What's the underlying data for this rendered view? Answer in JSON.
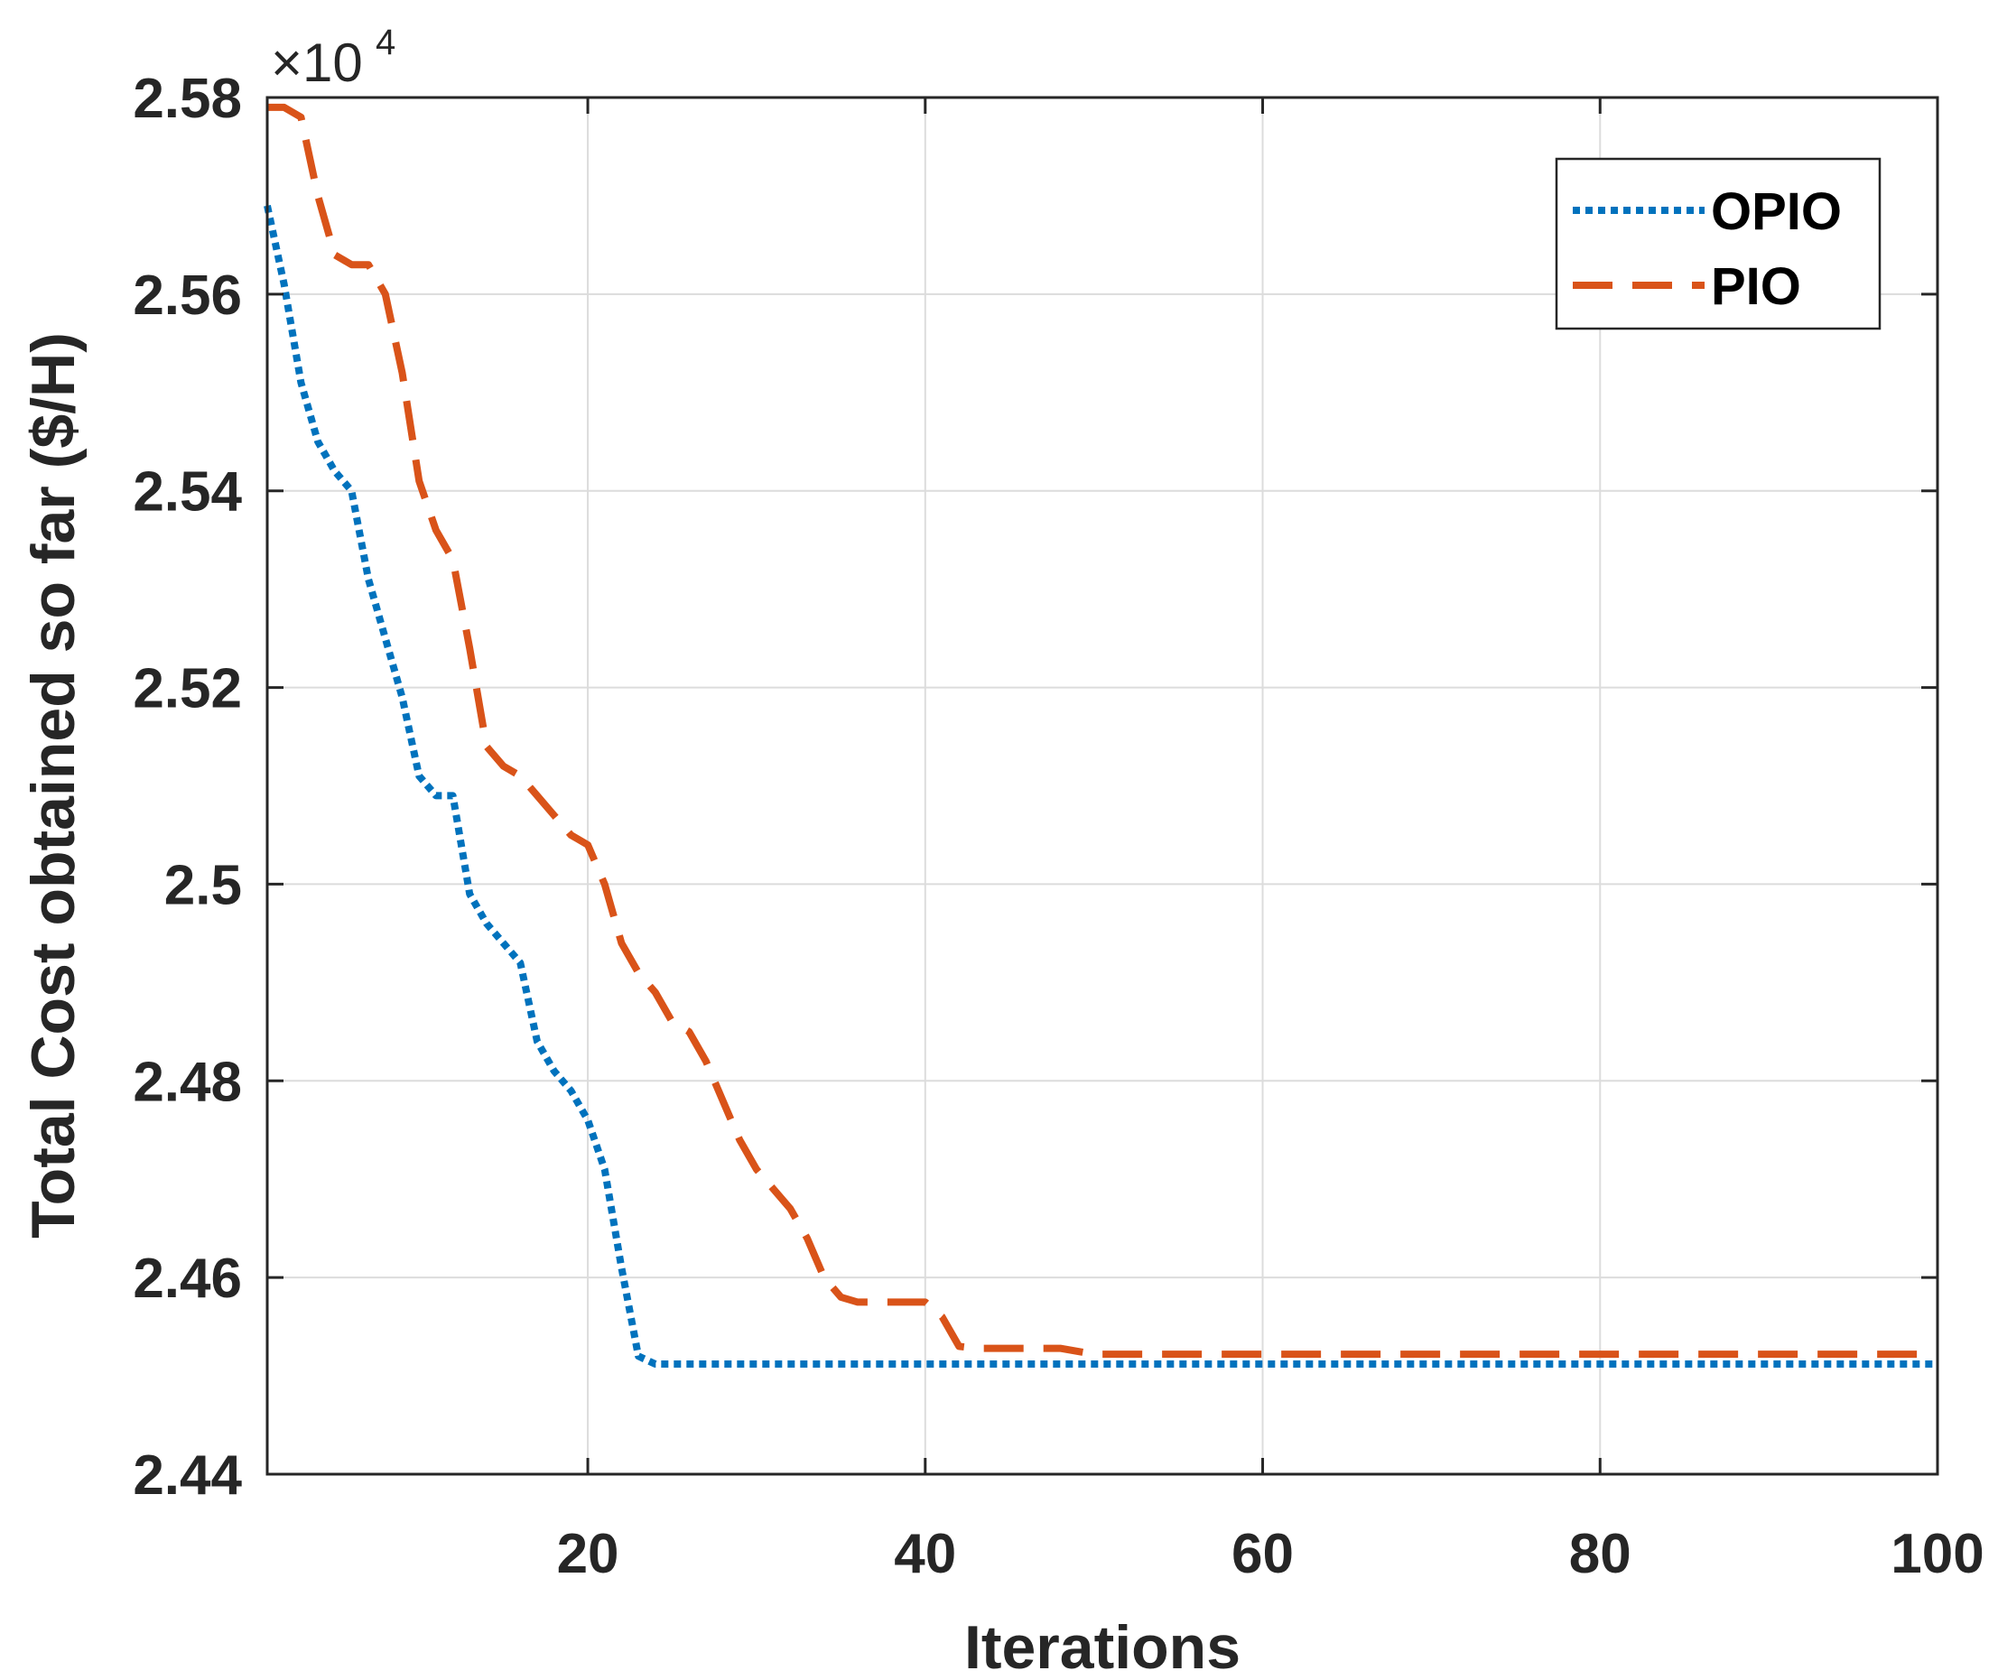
{
  "chart_data": {
    "type": "line",
    "xlabel": "Iterations",
    "ylabel": "Total Cost obtained so far ($/H)",
    "y_multiplier_base": "×10",
    "y_multiplier_exponent": "4",
    "xlim": [
      1,
      100
    ],
    "ylim": [
      2.44,
      2.58
    ],
    "x_ticks": [
      20,
      40,
      60,
      80,
      100
    ],
    "x_tick_labels": [
      "20",
      "40",
      "60",
      "80",
      "100"
    ],
    "y_ticks": [
      2.44,
      2.46,
      2.48,
      2.5,
      2.52,
      2.54,
      2.56,
      2.58
    ],
    "y_tick_labels": [
      "2.44",
      "2.46",
      "2.48",
      "2.5",
      "2.52",
      "2.54",
      "2.56",
      "2.58"
    ],
    "grid": true,
    "legend_position": "top-right",
    "series": [
      {
        "name": "OPIO",
        "color": "#0072BD",
        "style": "dotted",
        "x": [
          1,
          2,
          3,
          4,
          5,
          6,
          7,
          8,
          9,
          10,
          11,
          12,
          13,
          14,
          15,
          16,
          17,
          18,
          19,
          20,
          21,
          22,
          23,
          24,
          25,
          26,
          30,
          40,
          50,
          60,
          70,
          80,
          90,
          100
        ],
        "y": [
          2.569,
          2.561,
          2.551,
          2.545,
          2.542,
          2.54,
          2.531,
          2.525,
          2.519,
          2.511,
          2.509,
          2.509,
          2.499,
          2.496,
          2.494,
          2.492,
          2.484,
          2.481,
          2.479,
          2.476,
          2.471,
          2.461,
          2.452,
          2.4512,
          2.4512,
          2.4512,
          2.4512,
          2.4512,
          2.4512,
          2.4512,
          2.4512,
          2.4512,
          2.4512,
          2.4512
        ]
      },
      {
        "name": "PIO",
        "color": "#D95319",
        "style": "dashed",
        "x": [
          1,
          2,
          3,
          4,
          5,
          6,
          7,
          8,
          9,
          10,
          11,
          12,
          13,
          14,
          15,
          16,
          17,
          18,
          19,
          20,
          21,
          22,
          23,
          24,
          25,
          26,
          27,
          28,
          29,
          30,
          31,
          32,
          33,
          34,
          35,
          36,
          37,
          38,
          39,
          40,
          41,
          42,
          43,
          45,
          48,
          50,
          52,
          55,
          60,
          70,
          80,
          90,
          100
        ],
        "y": [
          2.579,
          2.579,
          2.578,
          2.57,
          2.564,
          2.563,
          2.563,
          2.56,
          2.552,
          2.541,
          2.536,
          2.533,
          2.524,
          2.514,
          2.512,
          2.511,
          2.509,
          2.507,
          2.505,
          2.504,
          2.5,
          2.494,
          2.491,
          2.489,
          2.486,
          2.485,
          2.482,
          2.478,
          2.474,
          2.471,
          2.469,
          2.467,
          2.464,
          2.46,
          2.458,
          2.4575,
          2.4575,
          2.4575,
          2.4575,
          2.4575,
          2.456,
          2.453,
          2.4528,
          2.4528,
          2.4528,
          2.4522,
          2.4522,
          2.4522,
          2.4522,
          2.4522,
          2.4522,
          2.4522,
          2.4522
        ]
      }
    ]
  }
}
